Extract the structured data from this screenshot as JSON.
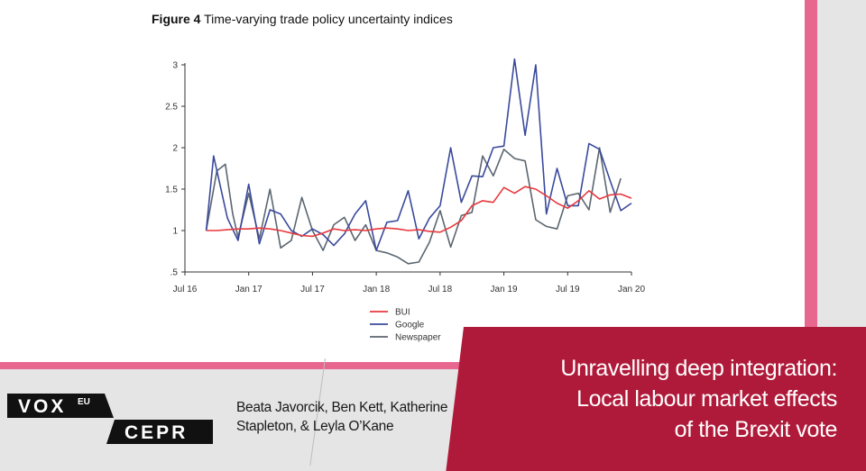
{
  "figure": {
    "label": "Figure 4",
    "title": "Time-varying trade policy uncertainty indices"
  },
  "chart_data": {
    "type": "line",
    "title": "Time-varying trade policy uncertainty indices",
    "x_ticks": [
      "Jul 16",
      "Jan 17",
      "Jul 17",
      "Jan 18",
      "Jul 18",
      "Jan 19",
      "Jul 19",
      "Jan 20"
    ],
    "y_ticks": [
      "3",
      "2.5",
      "2",
      "1.5",
      "1",
      ".5"
    ],
    "xlim": [
      0,
      42
    ],
    "ylim": [
      0.5,
      3
    ],
    "series": [
      {
        "name": "BUI",
        "color": "#e8383d",
        "values": [
          [
            2,
            1.0
          ],
          [
            3,
            1.0
          ],
          [
            4,
            1.01
          ],
          [
            5,
            1.02
          ],
          [
            6,
            1.02
          ],
          [
            7,
            1.03
          ],
          [
            8,
            1.02
          ],
          [
            9,
            1.0
          ],
          [
            10,
            0.97
          ],
          [
            11,
            0.94
          ],
          [
            12,
            0.93
          ],
          [
            13,
            0.97
          ],
          [
            14,
            1.02
          ],
          [
            15,
            1.0
          ],
          [
            16,
            1.01
          ],
          [
            17,
            1.0
          ],
          [
            18,
            1.02
          ],
          [
            19,
            1.03
          ],
          [
            20,
            1.02
          ],
          [
            21,
            1.0
          ],
          [
            22,
            1.01
          ],
          [
            23,
            0.99
          ],
          [
            24,
            0.98
          ],
          [
            25,
            1.04
          ],
          [
            26,
            1.12
          ],
          [
            27,
            1.3
          ],
          [
            28,
            1.36
          ],
          [
            29,
            1.34
          ],
          [
            30,
            1.52
          ],
          [
            31,
            1.45
          ],
          [
            32,
            1.53
          ],
          [
            33,
            1.5
          ],
          [
            34,
            1.42
          ],
          [
            35,
            1.33
          ],
          [
            36,
            1.27
          ],
          [
            37,
            1.36
          ],
          [
            38,
            1.48
          ],
          [
            39,
            1.38
          ],
          [
            40,
            1.43
          ],
          [
            41,
            1.44
          ],
          [
            42,
            1.39
          ]
        ]
      },
      {
        "name": "Google",
        "color": "#3a4a9c",
        "values": [
          [
            2,
            1.0
          ],
          [
            2.7,
            1.9
          ],
          [
            4,
            1.15
          ],
          [
            5,
            0.88
          ],
          [
            6,
            1.56
          ],
          [
            7,
            0.84
          ],
          [
            8,
            1.25
          ],
          [
            9,
            1.2
          ],
          [
            10,
            1.0
          ],
          [
            11,
            0.93
          ],
          [
            12,
            1.02
          ],
          [
            13,
            0.95
          ],
          [
            14,
            0.82
          ],
          [
            15,
            0.96
          ],
          [
            16,
            1.2
          ],
          [
            17,
            1.36
          ],
          [
            18,
            0.76
          ],
          [
            19,
            1.1
          ],
          [
            20,
            1.12
          ],
          [
            21,
            1.48
          ],
          [
            22,
            0.9
          ],
          [
            23,
            1.15
          ],
          [
            24,
            1.3
          ],
          [
            25,
            2.0
          ],
          [
            26,
            1.34
          ],
          [
            27,
            1.66
          ],
          [
            28,
            1.65
          ],
          [
            29,
            2.0
          ],
          [
            30,
            2.02
          ],
          [
            31,
            3.07
          ],
          [
            32,
            2.15
          ],
          [
            33,
            3.0
          ],
          [
            34,
            1.2
          ],
          [
            35,
            1.75
          ],
          [
            36,
            1.3
          ],
          [
            37,
            1.3
          ],
          [
            38,
            2.05
          ],
          [
            39,
            1.98
          ],
          [
            40,
            1.6
          ],
          [
            41,
            1.24
          ],
          [
            42,
            1.33
          ]
        ]
      },
      {
        "name": "Newspaper",
        "color": "#5b6670",
        "values": [
          [
            2,
            1.0
          ],
          [
            3,
            1.72
          ],
          [
            3.8,
            1.8
          ],
          [
            4.5,
            1.2
          ],
          [
            5,
            0.92
          ],
          [
            6,
            1.45
          ],
          [
            7,
            0.9
          ],
          [
            8,
            1.5
          ],
          [
            9,
            0.79
          ],
          [
            10,
            0.88
          ],
          [
            11,
            1.4
          ],
          [
            12,
            1.0
          ],
          [
            13,
            0.76
          ],
          [
            14,
            1.07
          ],
          [
            15,
            1.16
          ],
          [
            16,
            0.88
          ],
          [
            17,
            1.07
          ],
          [
            18,
            0.76
          ],
          [
            19,
            0.73
          ],
          [
            20,
            0.68
          ],
          [
            21,
            0.6
          ],
          [
            22,
            0.62
          ],
          [
            23,
            0.86
          ],
          [
            24,
            1.24
          ],
          [
            25,
            0.8
          ],
          [
            26,
            1.18
          ],
          [
            27,
            1.22
          ],
          [
            28,
            1.9
          ],
          [
            29,
            1.66
          ],
          [
            30,
            1.98
          ],
          [
            31,
            1.87
          ],
          [
            32,
            1.84
          ],
          [
            33,
            1.13
          ],
          [
            34,
            1.05
          ],
          [
            35,
            1.02
          ],
          [
            36,
            1.42
          ],
          [
            37,
            1.45
          ],
          [
            38,
            1.25
          ],
          [
            39,
            2.0
          ],
          [
            40,
            1.22
          ],
          [
            41,
            1.63
          ]
        ]
      }
    ],
    "legend_position": "bottom"
  },
  "branding": {
    "vox": "VOX",
    "eu": "EU",
    "cepr": "CEPR"
  },
  "authors": {
    "line1": "Beata Javorcik, Ben Kett, Katherine",
    "line2": "Stapleton, & Leyla O’Kane"
  },
  "headline": {
    "line1": "Unravelling deep integration:",
    "line2": "Local labour market effects",
    "line3": "of the Brexit vote"
  }
}
